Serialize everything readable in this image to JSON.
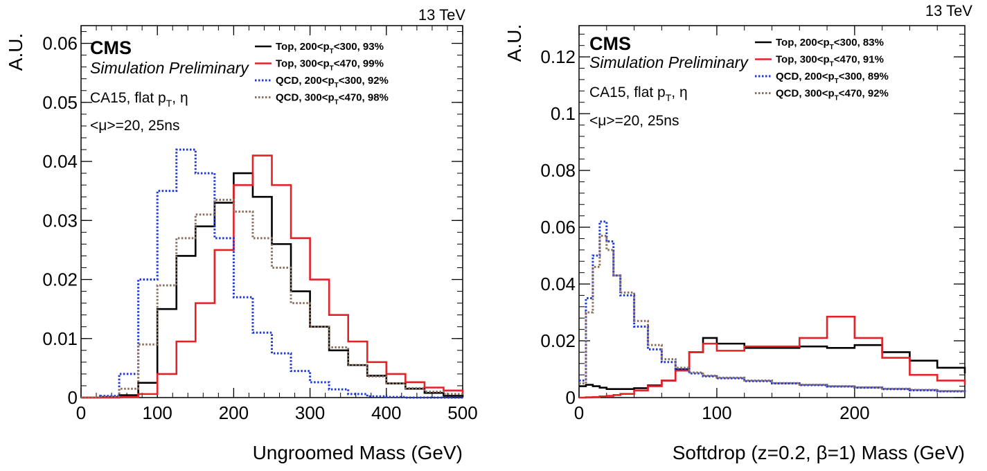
{
  "chart_data": [
    {
      "type": "line",
      "step": true,
      "energy_label": "13 TeV",
      "experiment": "CMS",
      "subtitle": "Simulation Preliminary",
      "annotations": [
        "CA15, flat p",
        "T",
        ", η",
        "<μ>=20, 25ns"
      ],
      "xlabel": "Ungroomed Mass (GeV)",
      "ylabel": "A.U.",
      "xlim": [
        0,
        500
      ],
      "ylim": [
        0,
        0.063
      ],
      "xticks": [
        0,
        100,
        200,
        300,
        400,
        500
      ],
      "xtick_labels": [
        "0",
        "100",
        "200",
        "300",
        "400",
        "500"
      ],
      "yticks": [
        0,
        0.01,
        0.02,
        0.03,
        0.04,
        0.05,
        0.06
      ],
      "ytick_labels": [
        "0",
        "0.01",
        "0.02",
        "0.03",
        "0.04",
        "0.05",
        "0.06"
      ],
      "legend_position": "top-right",
      "x": [
        0,
        25,
        50,
        75,
        100,
        125,
        150,
        175,
        200,
        225,
        250,
        275,
        300,
        325,
        350,
        375,
        400,
        425,
        450,
        475,
        500
      ],
      "series": [
        {
          "name": "Top, 200<pT<300, 93%",
          "legend_parts": [
            "Top, 200<p",
            "T",
            "<300, 93%"
          ],
          "color": "#000000",
          "dash": "solid",
          "values": [
            0,
            0.0001,
            0.0004,
            0.0025,
            0.015,
            0.024,
            0.029,
            0.033,
            0.038,
            0.034,
            0.026,
            0.018,
            0.012,
            0.008,
            0.0055,
            0.0037,
            0.0024,
            0.0015,
            0.0008,
            0.0003,
            0.0001
          ]
        },
        {
          "name": "Top, 300<pT<470, 99%",
          "legend_parts": [
            "Top, 300<p",
            "T",
            "<470, 99%"
          ],
          "color": "#e32228",
          "dash": "solid",
          "values": [
            0,
            0,
            0.0001,
            0.0006,
            0.004,
            0.0095,
            0.016,
            0.025,
            0.036,
            0.041,
            0.036,
            0.027,
            0.02,
            0.014,
            0.0095,
            0.006,
            0.004,
            0.0026,
            0.0017,
            0.0012,
            0.0008
          ]
        },
        {
          "name": "QCD, 200<pT<300, 92%",
          "legend_parts": [
            "QCD, 200<p",
            "T",
            "<300, 92%"
          ],
          "color": "#1f39d6",
          "dash": "dotted",
          "values": [
            0,
            0.0003,
            0.004,
            0.02,
            0.035,
            0.042,
            0.038,
            0.027,
            0.017,
            0.011,
            0.0075,
            0.0045,
            0.0026,
            0.0014,
            0.0006,
            0.0002,
            0.0001,
            0,
            0,
            0,
            0
          ]
        },
        {
          "name": "QCD, 300<pT<470, 98%",
          "legend_parts": [
            "QCD, 300<p",
            "T",
            "<470, 98%"
          ],
          "color": "#8c6e5d",
          "dash": "dotted",
          "values": [
            0,
            0.0002,
            0.0015,
            0.009,
            0.019,
            0.027,
            0.031,
            0.0335,
            0.0315,
            0.027,
            0.022,
            0.016,
            0.012,
            0.0085,
            0.0055,
            0.0036,
            0.0024,
            0.0016,
            0.001,
            0.0006,
            0.0003
          ]
        }
      ]
    },
    {
      "type": "line",
      "step": true,
      "energy_label": "13 TeV",
      "experiment": "CMS",
      "subtitle": "Simulation Preliminary",
      "annotations": [
        "CA15, flat p",
        "T",
        ", η",
        "<μ>=20, 25ns"
      ],
      "xlabel": "Softdrop (z=0.2, β=1) Mass (GeV)",
      "ylabel": "A.U.",
      "xlim": [
        0,
        280
      ],
      "ylim": [
        0,
        0.131
      ],
      "xticks": [
        0,
        100,
        200
      ],
      "xtick_labels": [
        "0",
        "100",
        "200"
      ],
      "yticks": [
        0,
        0.02,
        0.04,
        0.06,
        0.08,
        0.1,
        0.12
      ],
      "ytick_labels": [
        "0",
        "0.02",
        "0.04",
        "0.06",
        "0.08",
        "0.1",
        "0.12"
      ],
      "legend_position": "top-right",
      "x": [
        0,
        5,
        10,
        15,
        20,
        25,
        30,
        40,
        50,
        60,
        70,
        80,
        90,
        100,
        120,
        140,
        160,
        180,
        200,
        220,
        240,
        260,
        280
      ],
      "series": [
        {
          "name": "Top, 200<pT<300, 83%",
          "legend_parts": [
            "Top, 200<p",
            "T",
            "<300, 83%"
          ],
          "color": "#000000",
          "dash": "solid",
          "values": [
            0.004,
            0.0045,
            0.004,
            0.0035,
            0.003,
            0.003,
            0.003,
            0.0033,
            0.0043,
            0.006,
            0.01,
            0.016,
            0.021,
            0.019,
            0.0175,
            0.0175,
            0.018,
            0.0175,
            0.0185,
            0.016,
            0.013,
            0.0105,
            0.0085
          ]
        },
        {
          "name": "Top, 300<pT<470, 91%",
          "legend_parts": [
            "Top, 300<p",
            "T",
            "<470, 91%"
          ],
          "color": "#e32228",
          "dash": "solid",
          "values": [
            0,
            0.0001,
            0.0002,
            0.0004,
            0.0006,
            0.0009,
            0.0013,
            0.0025,
            0.004,
            0.006,
            0.0095,
            0.016,
            0.019,
            0.0165,
            0.018,
            0.018,
            0.021,
            0.0285,
            0.021,
            0.014,
            0.008,
            0.006,
            0.0045
          ]
        },
        {
          "name": "QCD, 200<pT<300, 89%",
          "legend_parts": [
            "QCD, 200<p",
            "T",
            "<300, 89%"
          ],
          "color": "#1f39d6",
          "dash": "dotted",
          "values": [
            0.006,
            0.035,
            0.05,
            0.062,
            0.055,
            0.043,
            0.036,
            0.025,
            0.017,
            0.0125,
            0.01,
            0.0085,
            0.0075,
            0.0068,
            0.0058,
            0.005,
            0.0044,
            0.0039,
            0.0035,
            0.003,
            0.0026,
            0.0022,
            0.0019
          ]
        },
        {
          "name": "QCD, 300<pT<470, 92%",
          "legend_parts": [
            "QCD, 300<p",
            "T",
            "<470, 92%"
          ],
          "color": "#8c6e5d",
          "dash": "dotted",
          "values": [
            0.005,
            0.03,
            0.046,
            0.057,
            0.052,
            0.043,
            0.037,
            0.027,
            0.0185,
            0.0135,
            0.0105,
            0.0088,
            0.0077,
            0.007,
            0.006,
            0.0051,
            0.0045,
            0.004,
            0.0036,
            0.0031,
            0.0027,
            0.0023,
            0.002
          ]
        }
      ]
    }
  ]
}
